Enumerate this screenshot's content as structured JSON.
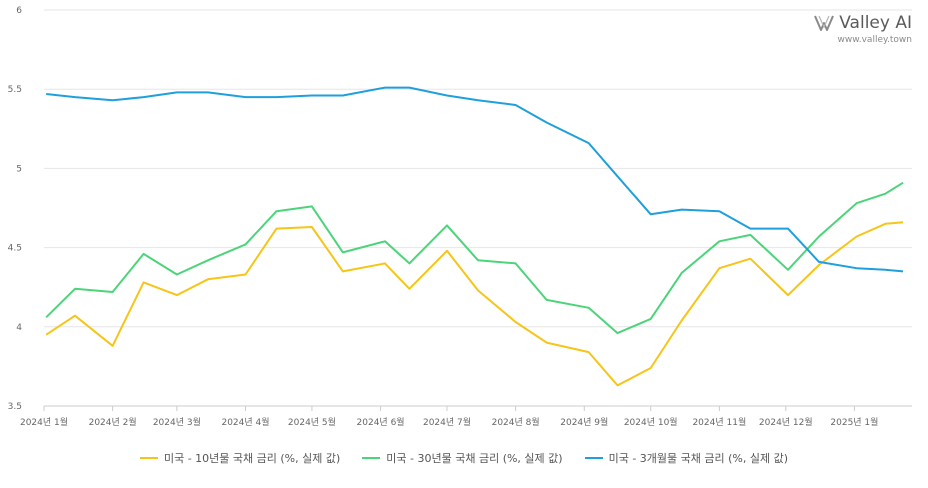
{
  "brand": {
    "name": "Valley AI",
    "url": "www.valley.town"
  },
  "chart_data": {
    "type": "line",
    "title": "",
    "xlabel": "",
    "ylabel": "",
    "ylim": [
      3.5,
      6
    ],
    "yticks": [
      "3.5",
      "4",
      "4.5",
      "5",
      "5.5",
      "6"
    ],
    "xticks": [
      "2024년 1월",
      "2024년 2월",
      "2024년 3월",
      "2024년 4월",
      "2024년 5월",
      "2024년 6월",
      "2024년 7월",
      "2024년 8월",
      "2024년 9월",
      "2024년 10월",
      "2024년 11월",
      "2024년 12월",
      "2025년 1월"
    ],
    "grid": true,
    "legend_position": "bottom",
    "x": [
      "2024-01-02",
      "2024-01-15",
      "2024-02-01",
      "2024-02-15",
      "2024-03-01",
      "2024-03-15",
      "2024-04-01",
      "2024-04-15",
      "2024-05-01",
      "2024-05-15",
      "2024-06-03",
      "2024-06-14",
      "2024-07-01",
      "2024-07-15",
      "2024-08-01",
      "2024-08-15",
      "2024-09-03",
      "2024-09-16",
      "2024-10-01",
      "2024-10-15",
      "2024-11-01",
      "2024-11-15",
      "2024-12-02",
      "2024-12-16",
      "2025-01-02",
      "2025-01-15",
      "2025-01-23"
    ],
    "series": [
      {
        "name": "미국 - 10년물 국채 금리 (%, 실제 값)",
        "color": "#f5c518",
        "values": [
          3.95,
          4.07,
          3.88,
          4.28,
          4.2,
          4.3,
          4.33,
          4.62,
          4.63,
          4.35,
          4.4,
          4.24,
          4.48,
          4.23,
          4.03,
          3.9,
          3.84,
          3.63,
          3.74,
          4.04,
          4.37,
          4.43,
          4.2,
          4.39,
          4.57,
          4.65,
          4.66
        ]
      },
      {
        "name": "미국 - 30년물 국채 금리 (%, 실제 값)",
        "color": "#4cd47a",
        "values": [
          4.06,
          4.24,
          4.22,
          4.46,
          4.33,
          4.42,
          4.52,
          4.73,
          4.76,
          4.47,
          4.54,
          4.4,
          4.64,
          4.42,
          4.4,
          4.17,
          4.12,
          3.96,
          4.05,
          4.34,
          4.54,
          4.58,
          4.36,
          4.57,
          4.78,
          4.84,
          4.91
        ]
      },
      {
        "name": "미국 - 3개월물 국채 금리 (%, 실제 값)",
        "color": "#1f9fdc",
        "values": [
          5.47,
          5.45,
          5.43,
          5.45,
          5.48,
          5.48,
          5.45,
          5.45,
          5.46,
          5.46,
          5.51,
          5.51,
          5.46,
          5.43,
          5.4,
          5.29,
          5.16,
          4.95,
          4.71,
          4.74,
          4.73,
          4.62,
          4.62,
          4.41,
          4.37,
          4.36,
          4.35
        ]
      }
    ]
  }
}
